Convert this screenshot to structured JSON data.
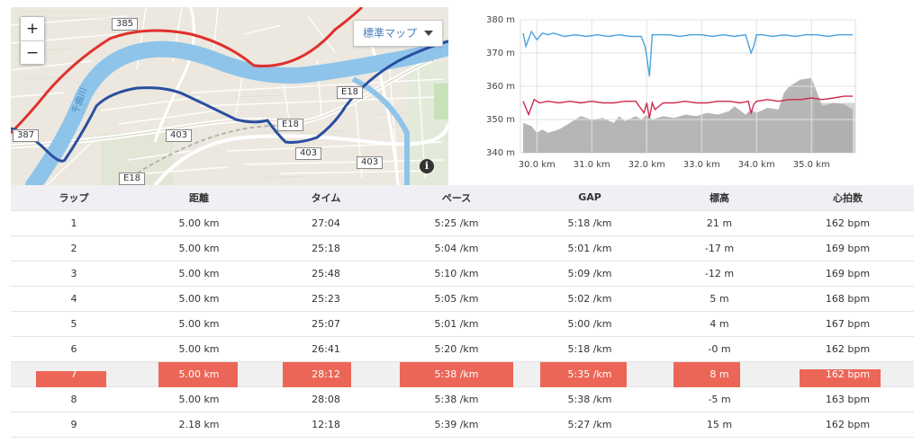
{
  "map": {
    "zoom_in_label": "+",
    "zoom_out_label": "−",
    "map_type_label": "標準マップ",
    "info_label": "i",
    "road_labels": [
      "385",
      "387",
      "403",
      "403",
      "403",
      "E18",
      "E18",
      "E18"
    ],
    "river_label": "千曲川",
    "colors": {
      "river": "#8ec4ea",
      "route_red": "#e0302d",
      "route_blue": "#2a4ea0",
      "road": "#ffffff"
    }
  },
  "chart_data": {
    "type": "line",
    "x_unit": "km",
    "xlim": [
      29.7,
      35.8
    ],
    "ylim": [
      340,
      380
    ],
    "x_ticks": [
      "30.0 km",
      "31.0 km",
      "32.0 km",
      "33.0 km",
      "34.0 km",
      "35.0 km"
    ],
    "y_ticks": [
      "340 m",
      "350 m",
      "360 m",
      "370 m",
      "380 m"
    ],
    "y_tick_values": [
      340,
      350,
      360,
      370,
      380
    ],
    "x_tick_values": [
      30,
      31,
      32,
      33,
      34,
      35
    ],
    "grid": true,
    "series": [
      {
        "color": "#4aa3df",
        "x": [
          29.75,
          29.8,
          29.9,
          30.0,
          30.1,
          30.2,
          30.3,
          30.5,
          30.7,
          30.9,
          31.1,
          31.3,
          31.5,
          31.7,
          31.9,
          31.97,
          32.0,
          32.05,
          32.1,
          32.2,
          32.4,
          32.6,
          32.8,
          33.0,
          33.2,
          33.4,
          33.6,
          33.8,
          33.9,
          33.95,
          34.0,
          34.1,
          34.3,
          34.5,
          34.7,
          34.9,
          35.1,
          35.3,
          35.5,
          35.75
        ],
        "y": [
          376,
          372,
          376.5,
          374,
          376,
          375.5,
          376,
          375,
          375.5,
          375,
          375.5,
          375,
          375.5,
          375,
          375,
          372,
          369,
          363,
          375.5,
          375.5,
          375.5,
          375,
          375.5,
          375.5,
          375,
          375.5,
          375,
          375.5,
          370,
          372,
          375.5,
          375.5,
          375,
          375.5,
          375,
          375.5,
          375.5,
          375,
          375.5,
          375.5
        ]
      },
      {
        "color": "#d0294f",
        "x": [
          29.75,
          29.85,
          29.95,
          30.05,
          30.2,
          30.4,
          30.6,
          30.8,
          31.0,
          31.2,
          31.4,
          31.6,
          31.8,
          31.95,
          32.0,
          32.05,
          32.1,
          32.15,
          32.3,
          32.5,
          32.7,
          32.9,
          33.1,
          33.3,
          33.5,
          33.7,
          33.85,
          33.9,
          33.95,
          34.0,
          34.2,
          34.4,
          34.6,
          34.8,
          35.0,
          35.2,
          35.4,
          35.6,
          35.75
        ],
        "y": [
          355.5,
          351.5,
          356,
          355,
          355.5,
          355,
          355.5,
          355,
          355.5,
          355,
          355,
          355.5,
          355.5,
          352,
          355,
          350.5,
          355,
          353,
          355,
          355,
          355.5,
          355,
          355,
          355.5,
          355.5,
          355,
          355.5,
          352,
          354.5,
          355.5,
          356,
          355.5,
          356,
          356,
          356.5,
          356,
          356.5,
          357,
          357
        ]
      },
      {
        "type": "area",
        "color": "#a9a9a9",
        "x": [
          29.75,
          29.9,
          30.0,
          30.1,
          30.2,
          30.4,
          30.6,
          30.8,
          31.0,
          31.2,
          31.4,
          31.5,
          31.6,
          31.8,
          31.9,
          32.0,
          32.1,
          32.3,
          32.5,
          32.7,
          32.9,
          33.1,
          33.3,
          33.5,
          33.6,
          33.8,
          33.9,
          34.0,
          34.2,
          34.4,
          34.5,
          34.6,
          34.8,
          35.0,
          35.2,
          35.4,
          35.6,
          35.75
        ],
        "y": [
          349,
          348,
          346,
          347,
          346,
          347,
          349,
          351,
          350,
          350.5,
          349,
          351,
          349.5,
          351,
          350,
          351.5,
          350,
          351,
          350.5,
          351.5,
          351,
          352,
          351.5,
          352.5,
          354,
          351.5,
          353,
          352,
          353.5,
          353,
          358,
          360,
          362,
          362.5,
          354,
          355,
          354.5,
          353
        ]
      }
    ]
  },
  "table": {
    "headers": [
      "ラップ",
      "距離",
      "タイム",
      "ペース",
      "GAP",
      "標高",
      "心拍数"
    ],
    "rows": [
      [
        "1",
        "5.00 km",
        "27:04",
        "5:25 /km",
        "5:18 /km",
        "21 m",
        "162 bpm"
      ],
      [
        "2",
        "5.00 km",
        "25:18",
        "5:04 /km",
        "5:01 /km",
        "-17 m",
        "169 bpm"
      ],
      [
        "3",
        "5.00 km",
        "25:48",
        "5:10 /km",
        "5:09 /km",
        "-12 m",
        "169 bpm"
      ],
      [
        "4",
        "5.00 km",
        "25:23",
        "5:05 /km",
        "5:02 /km",
        "5 m",
        "168 bpm"
      ],
      [
        "5",
        "5.00 km",
        "25:07",
        "5:01 /km",
        "5:00 /km",
        "4 m",
        "167 bpm"
      ],
      [
        "6",
        "5.00 km",
        "26:41",
        "5:20 /km",
        "5:18 /km",
        "-0 m",
        "162 bpm"
      ],
      [
        "7",
        "5.00 km",
        "28:12",
        "5:38 /km",
        "5:35 /km",
        "8 m",
        "162 bpm"
      ],
      [
        "8",
        "5.00 km",
        "28:08",
        "5:38 /km",
        "5:38 /km",
        "-5 m",
        "163 bpm"
      ],
      [
        "9",
        "2.18 km",
        "12:18",
        "5:39 /km",
        "5:27 /km",
        "15 m",
        "162 bpm"
      ]
    ],
    "highlighted_row_index": 6,
    "highlight_color": "#ec6657"
  }
}
